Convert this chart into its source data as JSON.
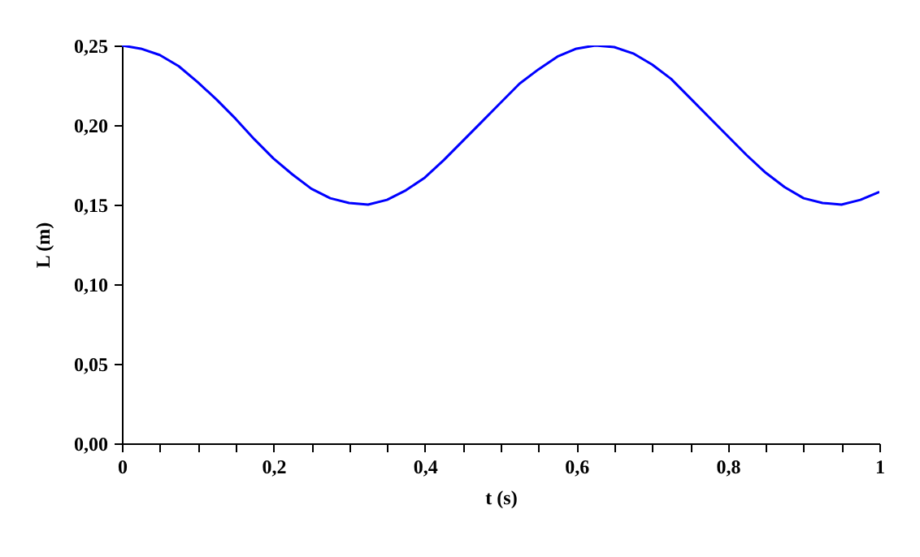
{
  "chart_data": {
    "type": "line",
    "xlabel": "t (s)",
    "ylabel": "L (m)",
    "x": [
      0,
      0.025,
      0.05,
      0.075,
      0.1,
      0.125,
      0.15,
      0.175,
      0.2,
      0.225,
      0.25,
      0.275,
      0.3,
      0.325,
      0.35,
      0.375,
      0.4,
      0.425,
      0.45,
      0.475,
      0.5,
      0.525,
      0.55,
      0.575,
      0.6,
      0.625,
      0.65,
      0.675,
      0.7,
      0.725,
      0.75,
      0.775,
      0.8,
      0.825,
      0.85,
      0.875,
      0.9,
      0.925,
      0.95,
      0.975,
      1
    ],
    "series": [
      {
        "color": "#0000ff",
        "values": [
          0.25,
          0.248,
          0.244,
          0.237,
          0.227,
          0.216,
          0.204,
          0.191,
          0.179,
          0.169,
          0.16,
          0.154,
          0.151,
          0.15,
          0.153,
          0.159,
          0.167,
          0.178,
          0.19,
          0.202,
          0.214,
          0.226,
          0.235,
          0.243,
          0.248,
          0.25,
          0.249,
          0.245,
          0.238,
          0.229,
          0.217,
          0.205,
          0.193,
          0.181,
          0.17,
          0.161,
          0.154,
          0.151,
          0.15,
          0.153,
          0.158
        ]
      }
    ],
    "xlim": [
      0,
      1
    ],
    "ylim": [
      0,
      0.25
    ],
    "xticks": [
      0,
      {
        "value": 0.05,
        "label": null
      },
      {
        "value": 0.1,
        "label": null
      },
      {
        "value": 0.15,
        "label": null
      },
      {
        "value": 0.2,
        "label": "0,2"
      },
      {
        "value": 0.25,
        "label": null
      },
      {
        "value": 0.3,
        "label": null
      },
      {
        "value": 0.35,
        "label": null
      },
      {
        "value": 0.4,
        "label": "0,4"
      },
      {
        "value": 0.45,
        "label": null
      },
      {
        "value": 0.5,
        "label": null
      },
      {
        "value": 0.55,
        "label": null
      },
      {
        "value": 0.6,
        "label": "0,6"
      },
      {
        "value": 0.65,
        "label": null
      },
      {
        "value": 0.7,
        "label": null
      },
      {
        "value": 0.75,
        "label": null
      },
      {
        "value": 0.8,
        "label": "0,8"
      },
      {
        "value": 0.85,
        "label": null
      },
      {
        "value": 0.9,
        "label": null
      },
      {
        "value": 0.95,
        "label": null
      },
      1
    ],
    "yticks": [
      {
        "value": 0,
        "label": "0,00"
      },
      {
        "value": 0.05,
        "label": "0,05"
      },
      {
        "value": 0.1,
        "label": "0,10"
      },
      {
        "value": 0.15,
        "label": "0,15"
      },
      {
        "value": 0.2,
        "label": "0,20"
      },
      {
        "value": 0.25,
        "label": "0,25"
      }
    ],
    "grid": false,
    "line_style": "solid",
    "marker": "none"
  }
}
